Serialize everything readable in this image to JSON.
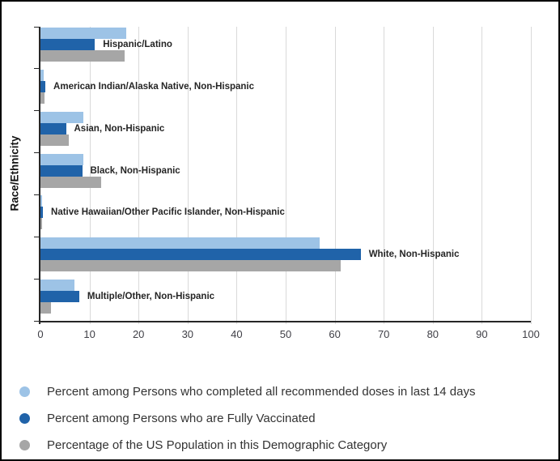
{
  "chart_data": {
    "type": "bar",
    "orientation": "horizontal",
    "title": "",
    "xlabel": "",
    "ylabel": "Race/Ethnicity",
    "xlim": [
      0,
      100
    ],
    "x_ticks": [
      0,
      10,
      20,
      30,
      40,
      50,
      60,
      70,
      80,
      90,
      100
    ],
    "grid": true,
    "legend_position": "bottom",
    "categories": [
      "Hispanic/Latino",
      "American Indian/Alaska Native, Non-Hispanic",
      "Asian, Non-Hispanic",
      "Black, Non-Hispanic",
      "Native Hawaiian/Other Pacific Islander, Non-Hispanic",
      "White, Non-Hispanic",
      "Multiple/Other, Non-Hispanic"
    ],
    "series": [
      {
        "key": "completed-14-days",
        "name": "Percent among Persons who completed all recommended doses in last 14 days",
        "color": "#9DC3E6",
        "values": [
          17.5,
          0.7,
          8.7,
          8.8,
          0.4,
          57.0,
          6.9
        ]
      },
      {
        "key": "fully-vaccinated",
        "name": "Percent among Persons who are Fully Vaccinated",
        "color": "#2063A9",
        "values": [
          11.1,
          1.0,
          5.2,
          8.5,
          0.5,
          65.3,
          7.9
        ]
      },
      {
        "key": "us-population",
        "name": "Percentage of the US Population in this Demographic Category",
        "color": "#A6A6A6",
        "values": [
          17.2,
          0.8,
          5.8,
          12.4,
          0.2,
          61.2,
          2.2
        ]
      }
    ]
  },
  "colors": {
    "background": "#FFFFFF",
    "border": "#000000",
    "axis": "#262626",
    "gridline": "#D9D9D9",
    "category_label": "#252525",
    "tick_label": "#3F3F46",
    "legend_text": "#333333"
  }
}
